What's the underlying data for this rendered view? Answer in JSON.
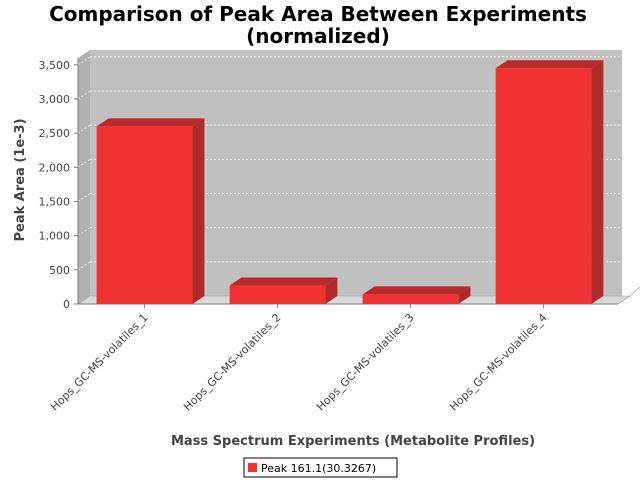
{
  "chart_data": {
    "type": "bar",
    "title": "Comparison of Peak Area Between Experiments",
    "subtitle": "(normalized)",
    "xlabel": "Mass Spectrum Experiments (Metabolite Profiles)",
    "ylabel": "Peak Area (1e-3)",
    "categories": [
      "Hops_GC-MS-volatiles_1",
      "Hops_GC-MS-volatiles_2",
      "Hops_GC-MS-volatiles_3",
      "Hops_GC-MS-volatiles_4"
    ],
    "series": [
      {
        "name": "Peak 161.1(30.3267)",
        "values": [
          2600,
          270,
          140,
          3450
        ],
        "color": "#f03232"
      }
    ],
    "ylim": [
      0,
      3600
    ],
    "yticks": [
      0,
      500,
      1000,
      1500,
      2000,
      2500,
      3000,
      3500
    ],
    "ytick_labels": [
      "0",
      "500",
      "1,000",
      "1,500",
      "2,000",
      "2,500",
      "3,000",
      "3,500"
    ],
    "grid": true,
    "style": "3d",
    "plot_background": "#c0c0c0",
    "legend_position": "bottom"
  }
}
